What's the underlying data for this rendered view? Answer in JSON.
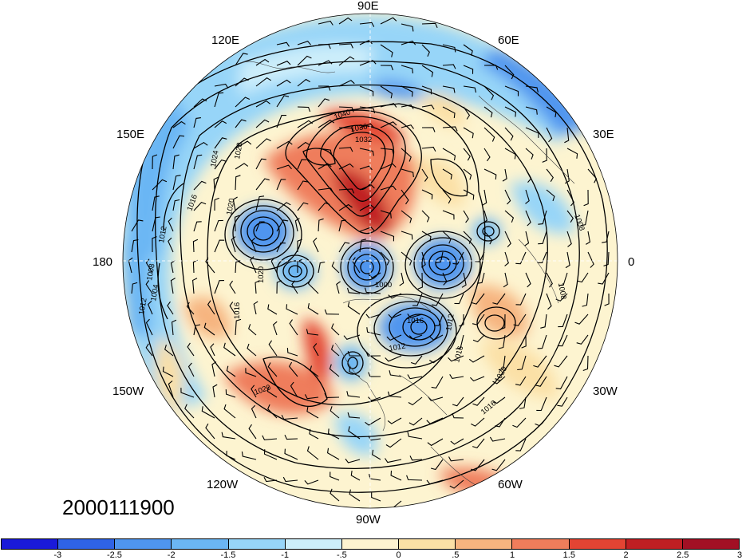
{
  "map": {
    "date_label": "2000111900",
    "longitude_labels": {
      "n": "90E",
      "nw": "120E",
      "ne": "60E",
      "wnw": "150E",
      "ene": "30E",
      "w": "180",
      "e": "0",
      "wsw": "150W",
      "ese": "30W",
      "sw": "120W",
      "se": "60W",
      "s": "90W"
    },
    "isobar_labels": [
      "1040",
      "1036",
      "1032",
      "1028",
      "1024",
      "1020",
      "1016",
      "1012",
      "1008",
      "1004",
      "1000",
      "1020",
      "1016",
      "1012",
      "1008",
      "1008",
      "1012",
      "1016",
      "1020",
      "1016",
      "1012",
      "1016",
      "1020"
    ],
    "colorbar": {
      "colors": [
        "#1a1ad9",
        "#2f63e6",
        "#4f95ef",
        "#6bb6f4",
        "#97d5f8",
        "#cdeefa",
        "#fdf4d0",
        "#fbe0a6",
        "#f6b47f",
        "#ef7d5b",
        "#e34433",
        "#c01f23",
        "#a21024"
      ],
      "ticks": [
        "-3",
        "-2.5",
        "-2",
        "-1.5",
        "-1",
        "-.5",
        "0",
        ".5",
        "1",
        "1.5",
        "2",
        "2.5",
        "3"
      ]
    }
  }
}
